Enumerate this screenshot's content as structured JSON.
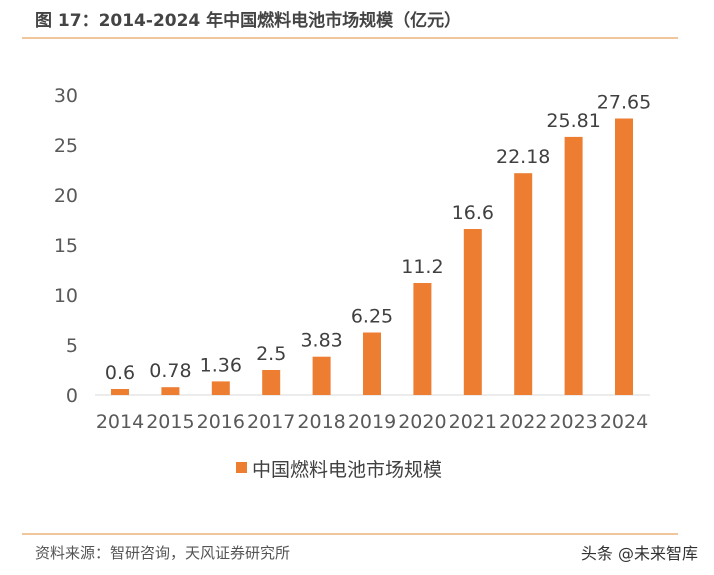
{
  "header": {
    "title": "图 17：2014-2024 年中国燃料电池市场规模（亿元）"
  },
  "footer": {
    "source": "资料来源：智研咨询，天风证券研究所",
    "watermark": "头条 @未来智库"
  },
  "colors": {
    "bar": "#ed7d31",
    "rule": "#f0c79a"
  },
  "chart_data": {
    "type": "bar",
    "categories": [
      "2014",
      "2015",
      "2016",
      "2017",
      "2018",
      "2019",
      "2020",
      "2021",
      "2022",
      "2023",
      "2024"
    ],
    "series": [
      {
        "name": "中国燃料电池市场规模",
        "values": [
          0.6,
          0.78,
          1.36,
          2.5,
          3.83,
          6.25,
          11.2,
          16.6,
          22.18,
          25.81,
          27.65
        ],
        "labels": [
          "0.6",
          "0.78",
          "1.36",
          "2.5",
          "3.83",
          "6.25",
          "11.2",
          "16.6",
          "22.18",
          "25.81",
          "27.65"
        ]
      }
    ],
    "yticks": [
      "0",
      "5",
      "10",
      "15",
      "20",
      "25",
      "30"
    ],
    "ylim": [
      0,
      30
    ],
    "grid": false,
    "legend": "bottom"
  }
}
